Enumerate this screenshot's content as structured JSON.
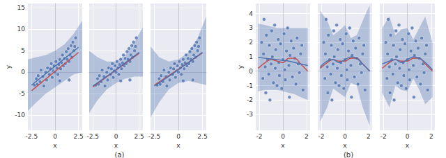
{
  "chart_data": [
    {
      "type": "scatter",
      "x_label": "x",
      "y_label": "y",
      "xlim": [
        -2.9,
        2.9
      ],
      "ylim": [
        -13.5,
        16
      ],
      "xticks": [
        -2.5,
        0,
        2.5
      ],
      "yticks": [
        -10,
        -5,
        0,
        5,
        10,
        15
      ],
      "grid": true,
      "series": [
        {
          "type": "band",
          "color": "#4c72b0",
          "x": [
            -2.9,
            -2,
            -1,
            0,
            1,
            2,
            2.9
          ],
          "lower": [
            -9,
            -7,
            -5,
            -3.5,
            -2,
            -0.5,
            0
          ],
          "upper": [
            3,
            3.5,
            4,
            5,
            6.5,
            9,
            12
          ]
        },
        {
          "type": "scatter",
          "color": "#4c72b0",
          "x": [
            -2.2,
            -2.0,
            -1.9,
            -1.8,
            -1.6,
            -1.5,
            -1.3,
            -1.2,
            -1.0,
            -0.9,
            -0.8,
            -0.6,
            -0.5,
            -0.4,
            -0.3,
            -0.2,
            -0.1,
            0.0,
            0.1,
            0.2,
            0.3,
            0.4,
            0.5,
            0.6,
            0.7,
            0.8,
            0.9,
            1.0,
            1.1,
            1.2,
            1.3,
            1.4,
            1.5,
            1.6,
            1.7,
            1.8,
            1.9,
            2.0,
            2.1,
            2.2,
            0.5,
            1.5
          ],
          "values": [
            -3.0,
            -1.5,
            -2.8,
            -0.8,
            -2.2,
            0.5,
            -1.0,
            -3.2,
            0.0,
            -1.8,
            1.0,
            -0.5,
            0.8,
            2.0,
            -1.2,
            0.3,
            1.5,
            0.0,
            2.5,
            1.0,
            -0.5,
            1.8,
            3.0,
            0.8,
            2.2,
            4.0,
            1.5,
            3.2,
            2.0,
            4.8,
            3.0,
            5.5,
            2.5,
            4.0,
            6.2,
            3.5,
            7.0,
            5.0,
            6.0,
            8.0,
            -2.0,
            -1.8
          ]
        },
        {
          "type": "line",
          "color": "#c44e52",
          "x": [
            -2.5,
            0,
            2.5
          ],
          "values": [
            -4.3,
            0.2,
            4.6
          ]
        },
        {
          "type": "line",
          "color": "#4c72b0",
          "x": [
            -2.5,
            0,
            2.5
          ],
          "values": [
            -3,
            1.4,
            5.8
          ]
        }
      ]
    },
    {
      "type": "scatter",
      "x_label": "x",
      "xlim": [
        -2.9,
        2.9
      ],
      "ylim": [
        -13.5,
        16
      ],
      "xticks": [
        -2.5,
        0,
        2.5
      ],
      "yticks": [
        -10,
        -5,
        0,
        5,
        10,
        15
      ],
      "grid": true,
      "tick_labels": "x",
      "caption": "(a)",
      "series": [
        {
          "type": "band",
          "color": "#4c72b0",
          "x": [
            -2.9,
            -2,
            -1,
            0,
            1,
            2,
            2.9
          ],
          "lower": [
            -9.5,
            -6.5,
            -4,
            -2.5,
            -1.5,
            -1,
            -1
          ],
          "upper": [
            5,
            3.5,
            2.5,
            2.5,
            4,
            7,
            10.5
          ]
        },
        {
          "type": "scatter",
          "color": "#4c72b0",
          "x": [
            -2.2,
            -2.0,
            -1.9,
            -1.8,
            -1.6,
            -1.5,
            -1.3,
            -1.2,
            -1.0,
            -0.9,
            -0.8,
            -0.6,
            -0.5,
            -0.4,
            -0.3,
            -0.2,
            -0.1,
            0.0,
            0.1,
            0.2,
            0.3,
            0.4,
            0.5,
            0.6,
            0.7,
            0.8,
            0.9,
            1.0,
            1.1,
            1.2,
            1.3,
            1.4,
            1.5,
            1.6,
            1.7,
            1.8,
            1.9,
            2.0,
            2.1,
            2.2,
            0.5,
            1.5
          ],
          "values": [
            -3.0,
            -1.5,
            -2.8,
            -0.8,
            -2.2,
            0.5,
            -1.0,
            -3.2,
            0.0,
            -1.8,
            1.0,
            -0.5,
            0.8,
            2.0,
            -1.2,
            0.3,
            1.5,
            0.0,
            2.5,
            1.0,
            -0.5,
            1.8,
            3.0,
            0.8,
            2.2,
            4.0,
            1.5,
            3.2,
            2.0,
            4.8,
            3.0,
            5.5,
            2.5,
            4.0,
            6.2,
            3.5,
            7.0,
            5.0,
            6.0,
            8.0,
            -2.0,
            -1.8
          ]
        },
        {
          "type": "line",
          "color": "#c44e52",
          "x": [
            -2.5,
            0,
            2.5
          ],
          "values": [
            -3.4,
            0.5,
            4.4
          ]
        },
        {
          "type": "line",
          "color": "#4c72b0",
          "x": [
            -2.5,
            0,
            2.5
          ],
          "values": [
            -3.2,
            0.6,
            4.6
          ]
        }
      ]
    },
    {
      "type": "scatter",
      "x_label": "x",
      "xlim": [
        -2.9,
        2.9
      ],
      "ylim": [
        -13.5,
        16
      ],
      "xticks": [
        -2.5,
        0,
        2.5
      ],
      "yticks": [
        -10,
        -5,
        0,
        5,
        10,
        15
      ],
      "grid": true,
      "tick_labels": "x",
      "series": [
        {
          "type": "band",
          "color": "#4c72b0",
          "x": [
            -2.9,
            -2,
            -1,
            0,
            1,
            2,
            2.9
          ],
          "lower": [
            -10.5,
            -7,
            -4,
            -2.5,
            -2,
            -2.5,
            -3
          ],
          "upper": [
            6,
            3.5,
            2.5,
            3,
            4.5,
            8,
            13
          ]
        },
        {
          "type": "scatter",
          "color": "#4c72b0",
          "x": [
            -2.2,
            -2.0,
            -1.9,
            -1.8,
            -1.6,
            -1.5,
            -1.3,
            -1.2,
            -1.0,
            -0.9,
            -0.8,
            -0.6,
            -0.5,
            -0.4,
            -0.3,
            -0.2,
            -0.1,
            0.0,
            0.1,
            0.2,
            0.3,
            0.4,
            0.5,
            0.6,
            0.7,
            0.8,
            0.9,
            1.0,
            1.1,
            1.2,
            1.3,
            1.4,
            1.5,
            1.6,
            1.7,
            1.8,
            1.9,
            2.0,
            2.1,
            2.2,
            0.5,
            1.5
          ],
          "values": [
            -3.0,
            -1.5,
            -2.8,
            -0.8,
            -2.2,
            0.5,
            -1.0,
            -3.2,
            0.0,
            -1.8,
            1.0,
            -0.5,
            0.8,
            2.0,
            -1.2,
            0.3,
            1.5,
            0.0,
            2.5,
            1.0,
            -0.5,
            1.8,
            3.0,
            0.8,
            2.2,
            4.0,
            1.5,
            3.2,
            2.0,
            4.8,
            3.0,
            5.5,
            2.5,
            4.0,
            6.2,
            3.5,
            7.0,
            5.0,
            6.0,
            8.0,
            -2.0,
            -1.8
          ]
        },
        {
          "type": "line",
          "color": "#c44e52",
          "x": [
            -2.5,
            0,
            2.5
          ],
          "values": [
            -3.0,
            0.7,
            4.5
          ]
        },
        {
          "type": "line",
          "color": "#4c72b0",
          "x": [
            -2.5,
            0,
            2.5
          ],
          "values": [
            -3.2,
            0.6,
            4.6
          ]
        }
      ]
    },
    {
      "type": "scatter",
      "x_label": "x",
      "y_label": "y",
      "xlim": [
        -2.3,
        2.3
      ],
      "ylim": [
        -4.1,
        4.7
      ],
      "xticks": [
        -2,
        0,
        2
      ],
      "yticks": [
        -3,
        -2,
        -1,
        0,
        1,
        2,
        3,
        4
      ],
      "grid": true,
      "series": [
        {
          "type": "band",
          "color": "#4c72b0",
          "x": [
            -2.1,
            -1.5,
            -1,
            -0.5,
            0,
            0.5,
            1,
            1.5,
            2.1
          ],
          "lower": [
            -1.4,
            -1.3,
            -1.3,
            -1.3,
            -1.4,
            -1.5,
            -1.6,
            -1.8,
            -2.0
          ],
          "upper": [
            3.3,
            3.2,
            3.1,
            3.0,
            3.0,
            3.0,
            3.0,
            3.0,
            3.0
          ]
        },
        {
          "type": "scatter",
          "color": "#4c72b0",
          "x": [
            -1.8,
            -1.7,
            -1.65,
            -1.6,
            -1.5,
            -1.45,
            -1.4,
            -1.3,
            -1.2,
            -1.15,
            -1.1,
            -1.0,
            -0.95,
            -0.9,
            -0.8,
            -0.7,
            -0.65,
            -0.6,
            -0.5,
            -0.4,
            -0.35,
            -0.3,
            -0.2,
            -0.1,
            0,
            0.1,
            0.15,
            0.2,
            0.3,
            0.4,
            0.5,
            0.55,
            0.6,
            0.7,
            0.8,
            0.9,
            1.0,
            1.1,
            1.2,
            1.3,
            1.4,
            1.5,
            1.6,
            1.7
          ],
          "values": [
            2.0,
            -0.5,
            1.2,
            3.6,
            0.3,
            -1.5,
            2.5,
            0.8,
            -0.2,
            1.8,
            -2.0,
            0.5,
            2.8,
            1.0,
            -0.8,
            3.2,
            0.2,
            1.5,
            -1.0,
            2.2,
            0.6,
            -0.3,
            1.9,
            -1.2,
            0.8,
            2.6,
            0.1,
            -0.6,
            1.4,
            3.0,
            0.4,
            -1.8,
            1.1,
            2.1,
            -0.4,
            1.6,
            0.9,
            -0.9,
            2.3,
            0.5,
            -0.1,
            1.2,
            1.8,
            -1.3
          ]
        },
        {
          "type": "line",
          "color": "#c44e52",
          "x": [
            -2.1,
            -1.5,
            -1,
            -0.5,
            0,
            0.5,
            1,
            1.5,
            2.1
          ],
          "values": [
            0.2,
            0.6,
            0.8,
            0.7,
            0.6,
            0.9,
            0.9,
            0.5,
            0.0
          ]
        },
        {
          "type": "line",
          "color": "#4c72b0",
          "x": [
            -2.1,
            -1.5,
            -1,
            -0.5,
            0,
            0.5,
            1,
            1.5,
            2.1
          ],
          "values": [
            0.95,
            0.9,
            0.85,
            0.8,
            0.75,
            0.7,
            0.6,
            0.5,
            0.4
          ]
        }
      ]
    },
    {
      "type": "scatter",
      "x_label": "x",
      "xlim": [
        -2.3,
        2.3
      ],
      "ylim": [
        -4.1,
        4.7
      ],
      "xticks": [
        -2,
        0,
        2
      ],
      "yticks": [
        -3,
        -2,
        -1,
        0,
        1,
        2,
        3,
        4
      ],
      "grid": true,
      "tick_labels": "x",
      "caption": "(b)",
      "series": [
        {
          "type": "band",
          "color": "#4c72b0",
          "x": [
            -2.1,
            -1.5,
            -1,
            -0.5,
            0,
            0.5,
            1,
            1.5,
            2.1
          ],
          "lower": [
            -3.5,
            -2.5,
            -1.2,
            -1.5,
            -1.8,
            -0.8,
            -1.0,
            -2.5,
            -3.8
          ],
          "upper": [
            4.2,
            3.5,
            2.5,
            2.8,
            3.2,
            2.3,
            2.5,
            3.5,
            4.6
          ]
        },
        {
          "type": "scatter",
          "color": "#4c72b0",
          "x": [
            -1.8,
            -1.7,
            -1.65,
            -1.6,
            -1.5,
            -1.45,
            -1.4,
            -1.3,
            -1.2,
            -1.15,
            -1.1,
            -1.0,
            -0.95,
            -0.9,
            -0.8,
            -0.7,
            -0.65,
            -0.6,
            -0.5,
            -0.4,
            -0.35,
            -0.3,
            -0.2,
            -0.1,
            0,
            0.1,
            0.15,
            0.2,
            0.3,
            0.4,
            0.5,
            0.55,
            0.6,
            0.7,
            0.8,
            0.9,
            1.0,
            1.1,
            1.2,
            1.3,
            1.4,
            1.5,
            1.6,
            1.7
          ],
          "values": [
            2.0,
            -0.5,
            1.2,
            3.6,
            0.3,
            -1.5,
            2.5,
            0.8,
            -0.2,
            1.8,
            -2.0,
            0.5,
            2.8,
            1.0,
            -0.8,
            3.2,
            0.2,
            1.5,
            -1.0,
            2.2,
            0.6,
            -0.3,
            1.9,
            -1.2,
            0.8,
            2.6,
            0.1,
            -0.6,
            1.4,
            3.0,
            0.4,
            -1.8,
            1.1,
            2.1,
            -0.4,
            1.6,
            0.9,
            -0.9,
            2.3,
            0.5,
            -0.1,
            1.2,
            1.8,
            -1.3
          ]
        },
        {
          "type": "line",
          "color": "#c44e52",
          "x": [
            -2.1,
            -1.5,
            -1,
            -0.5,
            0,
            0.5,
            1,
            1.5,
            2.1
          ],
          "values": [
            0.2,
            0.6,
            0.8,
            0.7,
            0.7,
            0.9,
            0.9,
            0.5,
            0.0
          ]
        },
        {
          "type": "line",
          "color": "#4c72b0",
          "x": [
            -2.1,
            -1.5,
            -1,
            -0.5,
            0,
            0.5,
            1,
            1.5,
            2.1
          ],
          "values": [
            0.3,
            0.7,
            0.8,
            0.6,
            0.8,
            1.0,
            0.9,
            0.5,
            0.0
          ]
        }
      ]
    },
    {
      "type": "scatter",
      "x_label": "x",
      "xlim": [
        -2.3,
        2.3
      ],
      "ylim": [
        -4.1,
        4.7
      ],
      "xticks": [
        -2,
        0,
        2
      ],
      "yticks": [
        -3,
        -2,
        -1,
        0,
        1,
        2,
        3,
        4
      ],
      "grid": true,
      "tick_labels": "x",
      "series": [
        {
          "type": "band",
          "color": "#4c72b0",
          "x": [
            -2.1,
            -1.5,
            -1,
            -0.5,
            0,
            0.5,
            1,
            1.5,
            2.1
          ],
          "lower": [
            -1.5,
            -2.5,
            -1.0,
            -1.3,
            -1.4,
            -0.5,
            -1.3,
            -2.3,
            -1.8
          ],
          "upper": [
            3.0,
            3.8,
            2.5,
            2.9,
            3.0,
            2.2,
            3.0,
            3.8,
            2.0
          ]
        },
        {
          "type": "scatter",
          "color": "#4c72b0",
          "x": [
            -1.8,
            -1.7,
            -1.65,
            -1.6,
            -1.5,
            -1.45,
            -1.4,
            -1.3,
            -1.2,
            -1.15,
            -1.1,
            -1.0,
            -0.95,
            -0.9,
            -0.8,
            -0.7,
            -0.65,
            -0.6,
            -0.5,
            -0.4,
            -0.35,
            -0.3,
            -0.2,
            -0.1,
            0,
            0.1,
            0.15,
            0.2,
            0.3,
            0.4,
            0.5,
            0.55,
            0.6,
            0.7,
            0.8,
            0.9,
            1.0,
            1.1,
            1.2,
            1.3,
            1.4,
            1.5,
            1.6,
            1.7
          ],
          "values": [
            2.0,
            -0.5,
            1.2,
            3.6,
            0.3,
            -1.5,
            2.5,
            0.8,
            -0.2,
            1.8,
            -2.0,
            0.5,
            2.8,
            1.0,
            -0.8,
            3.2,
            0.2,
            1.5,
            -1.0,
            2.2,
            0.6,
            -0.3,
            1.9,
            -1.2,
            0.8,
            2.6,
            0.1,
            -0.6,
            1.4,
            3.0,
            0.4,
            -1.8,
            1.1,
            2.1,
            -0.4,
            1.6,
            0.9,
            -0.9,
            2.3,
            0.5,
            -0.1,
            1.2,
            1.8,
            -1.3
          ]
        },
        {
          "type": "line",
          "color": "#c44e52",
          "x": [
            -2.1,
            -1.5,
            -1,
            -0.5,
            0,
            0.5,
            1,
            1.5,
            2.1
          ],
          "values": [
            0.2,
            0.6,
            0.8,
            0.7,
            0.7,
            0.9,
            0.9,
            0.5,
            0.0
          ]
        },
        {
          "type": "line",
          "color": "#4c72b0",
          "x": [
            -2.1,
            -1.5,
            -1,
            -0.5,
            0,
            0.5,
            1,
            1.5,
            2.1
          ],
          "values": [
            0.5,
            0.7,
            0.8,
            0.6,
            0.8,
            1.0,
            0.9,
            0.6,
            0.1
          ]
        }
      ]
    }
  ]
}
